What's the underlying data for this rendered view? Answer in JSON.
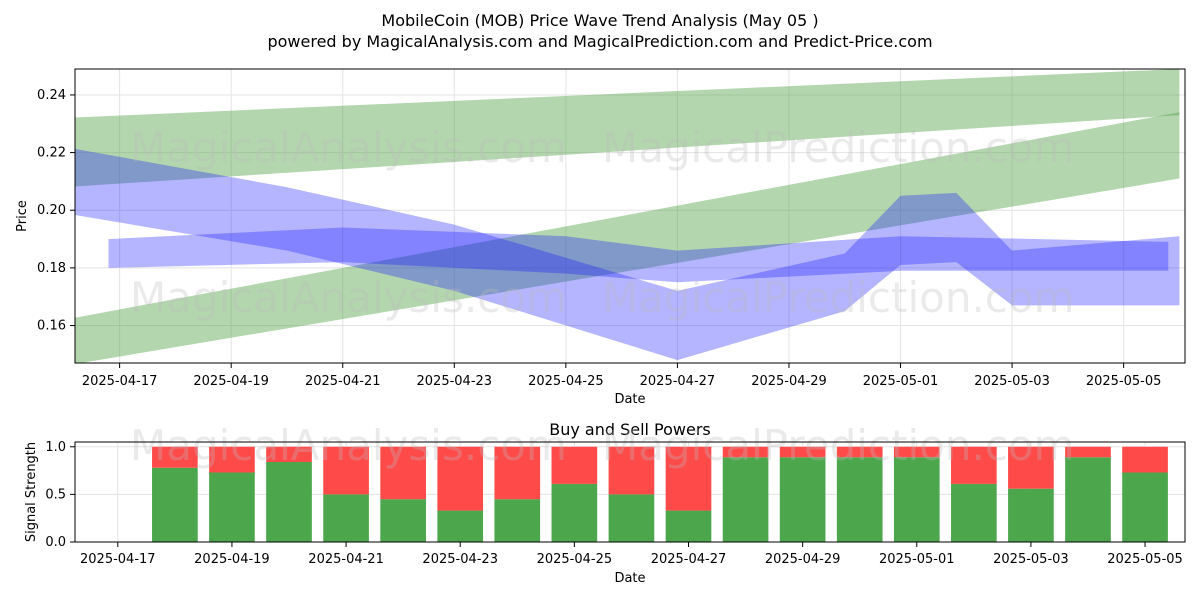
{
  "title_line1": "MobileCoin (MOB) Price Wave Trend Analysis (May 05 )",
  "title_line2": "powered by MagicalAnalysis.com and MagicalPrediction.com and Predict-Price.com",
  "watermarks": [
    "MagicalAnalysis.com",
    "MagicalPrediction.com"
  ],
  "colors": {
    "green_band": "#4a9e3f",
    "blue_band": "#1a1aff",
    "buy": "#4ca64c",
    "sell": "#ff4a4a"
  },
  "chart_data": [
    {
      "type": "area",
      "xlabel": "Date",
      "ylabel": "Price",
      "ylim": [
        0.147,
        0.249
      ],
      "y_ticks": [
        "0.16",
        "0.18",
        "0.20",
        "0.22",
        "0.24"
      ],
      "x_ticks": [
        "2025-04-17",
        "2025-04-19",
        "2025-04-21",
        "2025-04-23",
        "2025-04-25",
        "2025-04-27",
        "2025-04-29",
        "2025-05-01",
        "2025-05-03",
        "2025-05-05"
      ],
      "grid": true,
      "bands": [
        {
          "color": "green",
          "x": [
            "2025-04-16",
            "2025-05-06"
          ],
          "upper": [
            0.232,
            0.249
          ],
          "lower": [
            0.208,
            0.233
          ]
        },
        {
          "color": "green",
          "x": [
            "2025-04-16",
            "2025-05-06"
          ],
          "upper": [
            0.162,
            0.234
          ],
          "lower": [
            0.146,
            0.211
          ]
        },
        {
          "color": "blue",
          "x": [
            "2025-04-16",
            "2025-04-20",
            "2025-04-23",
            "2025-04-27",
            "2025-04-30",
            "2025-05-01",
            "2025-05-02",
            "2025-05-03",
            "2025-05-06"
          ],
          "upper": [
            0.222,
            0.208,
            0.195,
            0.172,
            0.185,
            0.205,
            0.206,
            0.186,
            0.191
          ],
          "lower": [
            0.199,
            0.186,
            0.172,
            0.148,
            0.165,
            0.181,
            0.182,
            0.167,
            0.167
          ]
        },
        {
          "color": "blue",
          "x": [
            "2025-04-16.8",
            "2025-04-21",
            "2025-04-25",
            "2025-04-27",
            "2025-05-01",
            "2025-05-05.8"
          ],
          "upper": [
            0.19,
            0.194,
            0.191,
            0.186,
            0.191,
            0.189
          ],
          "lower": [
            0.18,
            0.182,
            0.178,
            0.175,
            0.179,
            0.179
          ]
        }
      ]
    },
    {
      "type": "bar",
      "title": "Buy and Sell Powers",
      "xlabel": "Date",
      "ylabel": "Signal Strength",
      "ylim": [
        0,
        1.05
      ],
      "y_ticks": [
        "0.0",
        "0.5",
        "1.0"
      ],
      "x_ticks": [
        "2025-04-17",
        "2025-04-19",
        "2025-04-21",
        "2025-04-23",
        "2025-04-25",
        "2025-04-27",
        "2025-04-29",
        "2025-05-01",
        "2025-05-03",
        "2025-05-05"
      ],
      "categories": [
        "2025-04-18",
        "2025-04-19",
        "2025-04-20",
        "2025-04-21",
        "2025-04-22",
        "2025-04-23",
        "2025-04-24",
        "2025-04-25",
        "2025-04-26",
        "2025-04-27",
        "2025-04-28",
        "2025-04-29",
        "2025-04-30",
        "2025-05-01",
        "2025-05-02",
        "2025-05-03",
        "2025-05-04",
        "2025-05-05"
      ],
      "series": [
        {
          "values": [
            0.78,
            0.73,
            0.84,
            0.5,
            0.45,
            0.33,
            0.45,
            0.61,
            0.5,
            0.33,
            0.89,
            0.89,
            0.89,
            0.89,
            0.61,
            0.56,
            0.89,
            0.73
          ]
        },
        {
          "values": [
            0.22,
            0.27,
            0.16,
            0.5,
            0.55,
            0.67,
            0.55,
            0.39,
            0.5,
            0.67,
            0.11,
            0.11,
            0.11,
            0.11,
            0.39,
            0.44,
            0.11,
            0.27
          ]
        }
      ]
    }
  ]
}
